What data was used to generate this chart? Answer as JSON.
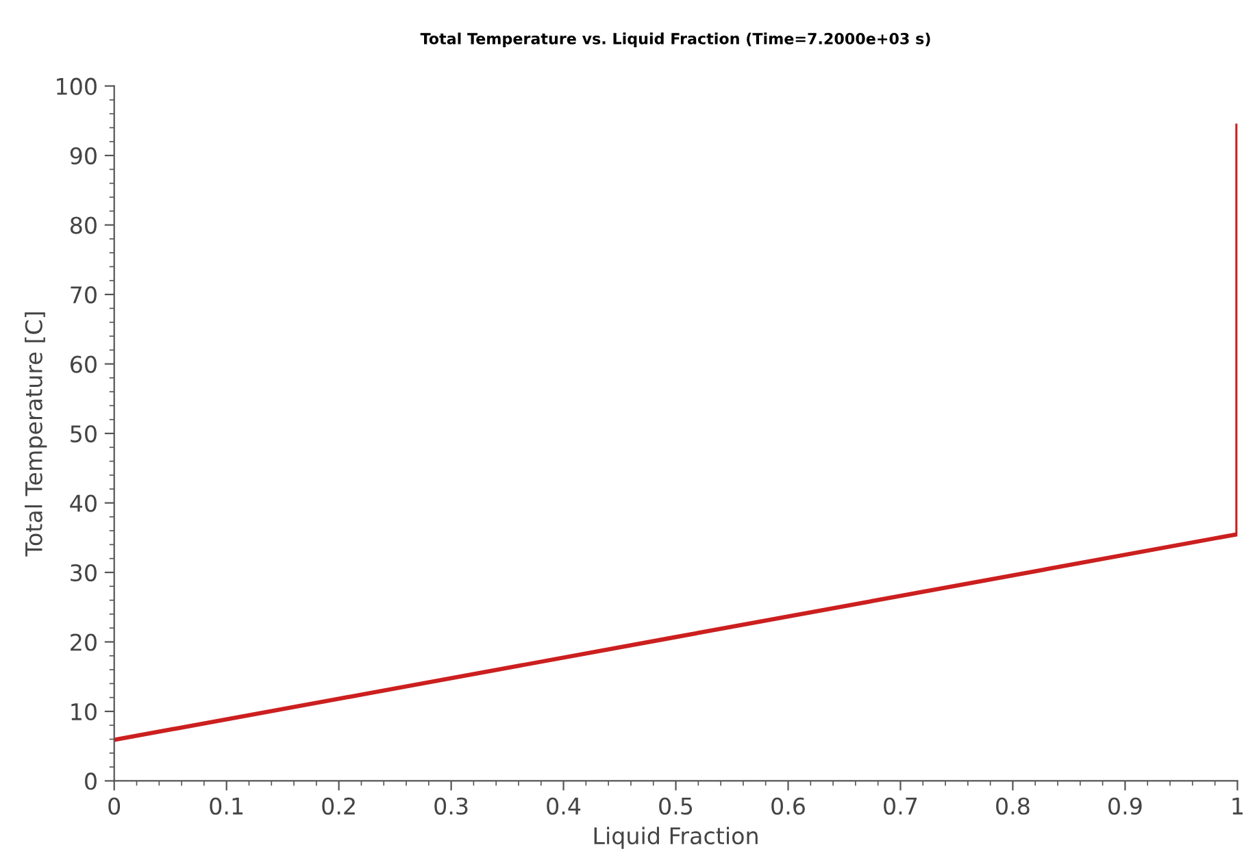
{
  "chart_data": {
    "type": "line",
    "title": "Total Temperature vs. Liquid Fraction (Time=7.2000e+03 s)",
    "xlabel": "Liquid Fraction",
    "ylabel": "Total Temperature [C]",
    "x": [
      0,
      0.5,
      1,
      1
    ],
    "series": [
      {
        "color": "#cc1f1f",
        "values": [
          5.9,
          20.7,
          35.5,
          94.3
        ]
      }
    ],
    "xlim": [
      0,
      1
    ],
    "xticks": [
      0,
      0.1,
      0.2,
      0.3,
      0.4,
      0.5,
      0.6,
      0.7,
      0.8,
      0.9,
      1
    ],
    "ylim": [
      0,
      100
    ],
    "yticks": [
      0,
      10,
      20,
      30,
      40,
      50,
      60,
      70,
      80,
      90,
      100
    ],
    "grid": false,
    "marker": "none",
    "line_style": "solid"
  }
}
